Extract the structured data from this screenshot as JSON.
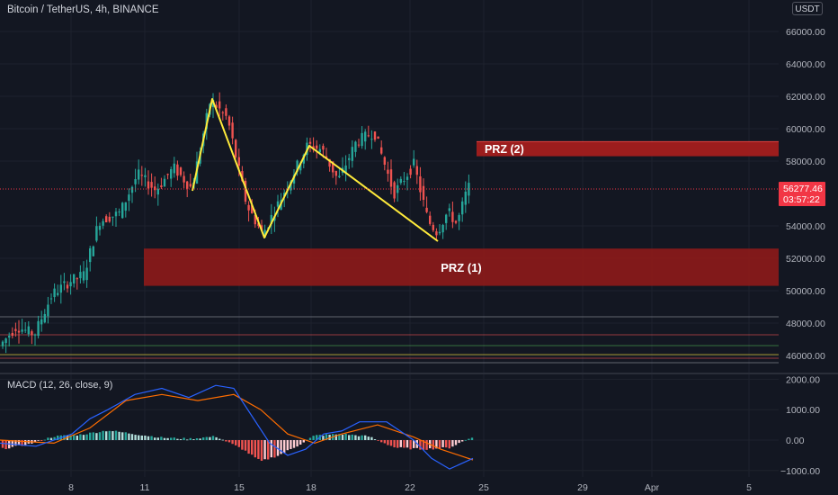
{
  "header": {
    "symbol_title": "Bitcoin / TetherUS, 4h, BINANCE",
    "currency": "USDT"
  },
  "indicator": {
    "title": "MACD (12, 26, close, 9)"
  },
  "price_axis": {
    "labels": [
      "66000.00",
      "64000.00",
      "62000.00",
      "60000.00",
      "58000.00",
      "54000.00",
      "52000.00",
      "50000.00",
      "48000.00",
      "46000.00"
    ],
    "values": [
      66000,
      64000,
      62000,
      60000,
      58000,
      54000,
      52000,
      50000,
      48000,
      46000
    ]
  },
  "macd_axis": {
    "labels": [
      "2000.00",
      "1000.00",
      "0.00",
      "−1000.00"
    ],
    "values": [
      2000,
      1000,
      0,
      -1000
    ]
  },
  "time_axis": {
    "labels": [
      "8",
      "11",
      "15",
      "18",
      "22",
      "25",
      "29",
      "Apr",
      "5"
    ]
  },
  "current_price": {
    "price": "56277.46",
    "countdown": "03:57:22",
    "value": 56277.46,
    "color": "#f23645"
  },
  "zones": [
    {
      "label": "PRZ (1)",
      "low": 50300,
      "high": 52600
    },
    {
      "label": "PRZ (2)",
      "low": 58300,
      "high": 59200
    }
  ],
  "colors": {
    "background": "#131722",
    "grid": "#1e222d",
    "up": "#26a69a",
    "down": "#ef5350",
    "zone": "#8b1a1a",
    "pattern": "#ffeb3b",
    "macd_line": "#2962ff",
    "signal_line": "#ff6d00"
  }
}
